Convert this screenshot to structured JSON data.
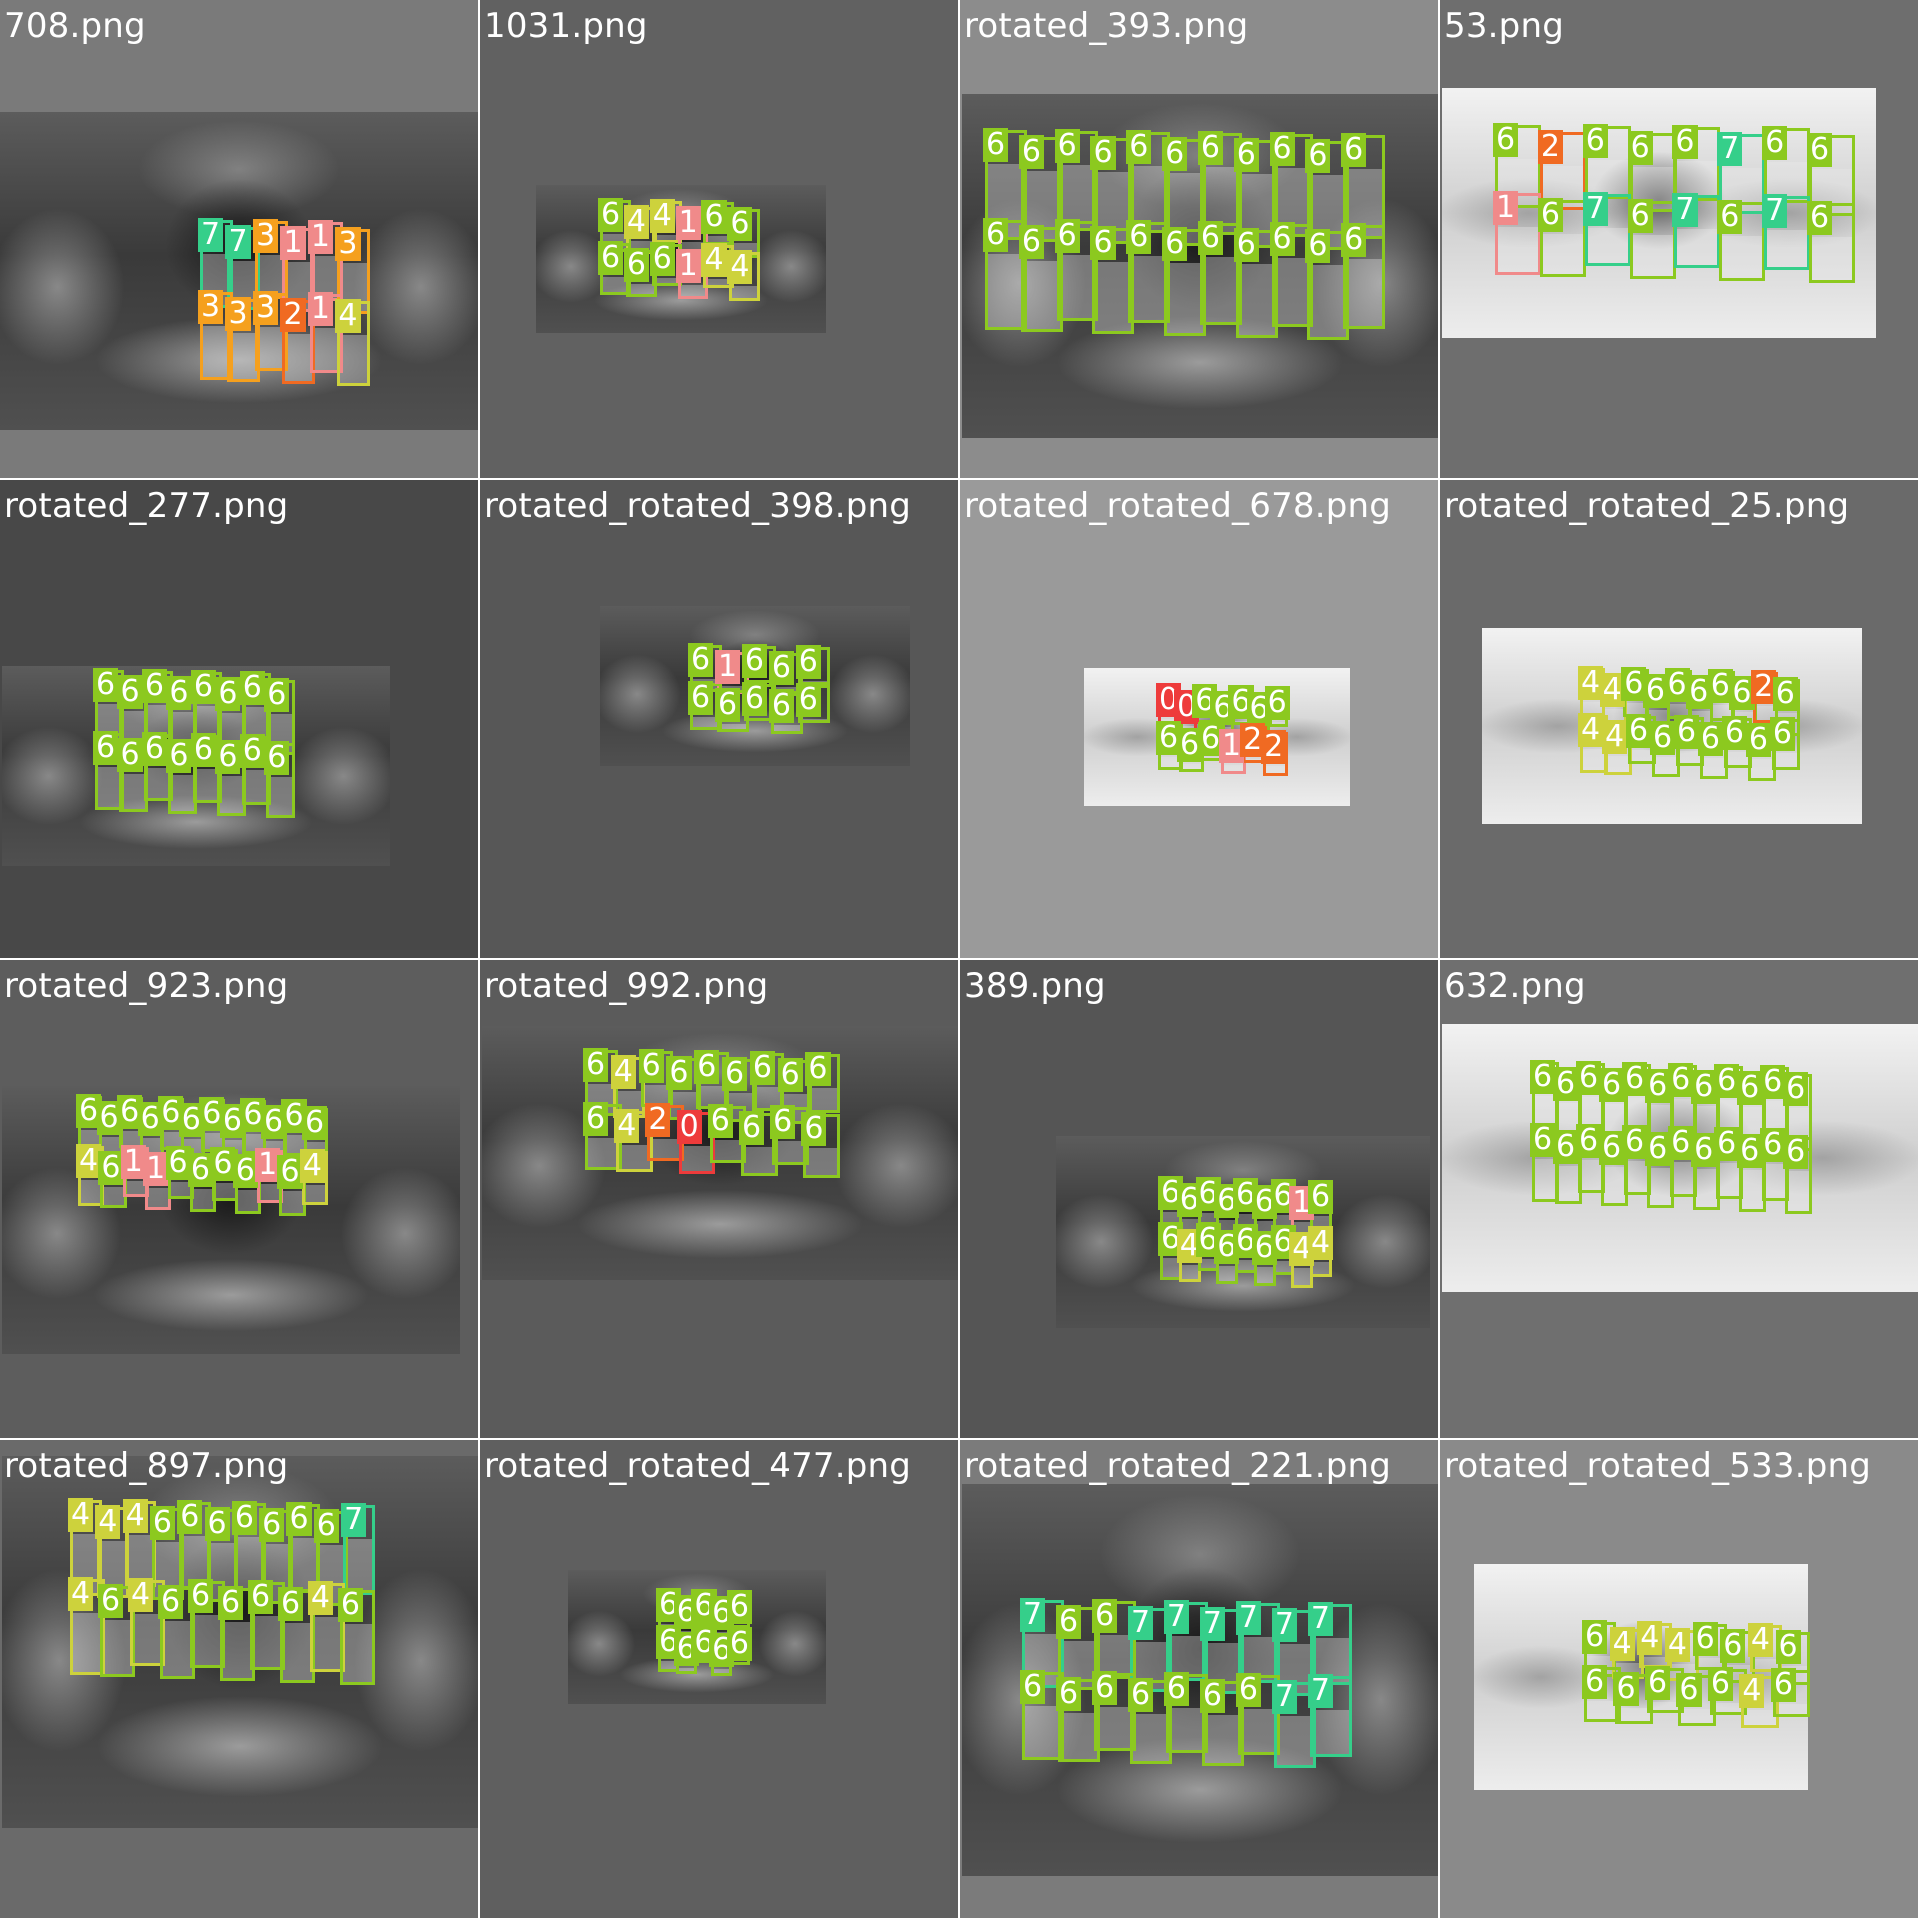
{
  "grid": {
    "columns": 4,
    "rows": 4
  },
  "class_colors": {
    "0": "#ee3b3b",
    "1": "#f08a8a",
    "2": "#f06a22",
    "3": "#f5a01e",
    "4": "#cdd23c",
    "6": "#8cc91f",
    "7": "#35cf8a"
  },
  "tiles": [
    {
      "title": "708.png",
      "bg": "#7a7a7a",
      "theme": "dark",
      "labels": [
        "7",
        "7",
        "3",
        "1",
        "1",
        "3",
        "3",
        "3",
        "3",
        "2",
        "1",
        "4"
      ]
    },
    {
      "title": "1031.png",
      "bg": "#616161",
      "theme": "dark",
      "labels": [
        "6",
        "4",
        "4",
        "1",
        "6",
        "6",
        "6",
        "6",
        "6",
        "1",
        "4",
        "4"
      ]
    },
    {
      "title": "rotated_393.png",
      "bg": "#8c8c8c",
      "theme": "dark",
      "labels": [
        "6",
        "6",
        "6",
        "6",
        "6",
        "6",
        "6",
        "6",
        "6",
        "6",
        "6",
        "6",
        "6",
        "6",
        "6",
        "6",
        "6",
        "6",
        "6",
        "6",
        "6",
        "6"
      ]
    },
    {
      "title": "53.png",
      "bg": "#6e6e6e",
      "theme": "light",
      "labels": [
        "6",
        "2",
        "6",
        "6",
        "6",
        "7",
        "6",
        "6",
        "1",
        "6",
        "7",
        "6",
        "7",
        "6",
        "7",
        "6"
      ]
    },
    {
      "title": "rotated_277.png",
      "bg": "#484848",
      "theme": "dark",
      "labels": [
        "6",
        "6",
        "6",
        "6",
        "6",
        "6",
        "6",
        "6",
        "6",
        "6",
        "6",
        "6",
        "6",
        "6",
        "6",
        "6"
      ]
    },
    {
      "title": "rotated_rotated_398.png",
      "bg": "#575757",
      "theme": "dark",
      "labels": [
        "6",
        "1",
        "6",
        "6",
        "6",
        "6",
        "6",
        "6",
        "6",
        "6"
      ]
    },
    {
      "title": "rotated_rotated_678.png",
      "bg": "#9a9a9a",
      "theme": "light",
      "labels": [
        "0",
        "0",
        "6",
        "6",
        "6",
        "6",
        "6",
        "6",
        "6",
        "6",
        "1",
        "2",
        "2"
      ]
    },
    {
      "title": "rotated_rotated_25.png",
      "bg": "#6a6a6a",
      "theme": "light",
      "labels": [
        "4",
        "4",
        "6",
        "6",
        "6",
        "6",
        "6",
        "6",
        "2",
        "6",
        "4",
        "4",
        "6",
        "6",
        "6",
        "6",
        "6",
        "6",
        "6"
      ]
    },
    {
      "title": "rotated_923.png",
      "bg": "#5d5d5d",
      "theme": "dark",
      "labels": [
        "6",
        "6",
        "6",
        "6",
        "6",
        "6",
        "6",
        "6",
        "6",
        "6",
        "6",
        "6",
        "4",
        "6",
        "1",
        "1",
        "6",
        "6",
        "6",
        "6",
        "1",
        "6",
        "4"
      ]
    },
    {
      "title": "rotated_992.png",
      "bg": "#5b5b5b",
      "theme": "dark",
      "labels": [
        "6",
        "4",
        "6",
        "6",
        "6",
        "6",
        "6",
        "6",
        "6",
        "6",
        "4",
        "2",
        "0",
        "6",
        "6",
        "6",
        "6"
      ]
    },
    {
      "title": "389.png",
      "bg": "#555555",
      "theme": "dark",
      "labels": [
        "6",
        "6",
        "6",
        "6",
        "6",
        "6",
        "6",
        "1",
        "6",
        "6",
        "4",
        "6",
        "6",
        "6",
        "6",
        "6",
        "4",
        "4"
      ]
    },
    {
      "title": "632.png",
      "bg": "#6f6f6f",
      "theme": "light",
      "labels": [
        "6",
        "6",
        "6",
        "6",
        "6",
        "6",
        "6",
        "6",
        "6",
        "6",
        "6",
        "6",
        "6",
        "6",
        "6",
        "6",
        "6",
        "6",
        "6",
        "6",
        "6",
        "6",
        "6",
        "6"
      ]
    },
    {
      "title": "rotated_897.png",
      "bg": "#6a6a6a",
      "theme": "dark",
      "labels": [
        "4",
        "4",
        "4",
        "6",
        "6",
        "6",
        "6",
        "6",
        "6",
        "6",
        "7",
        "4",
        "6",
        "4",
        "6",
        "6",
        "6",
        "6",
        "6",
        "4",
        "6"
      ]
    },
    {
      "title": "rotated_rotated_477.png",
      "bg": "#5f5f5f",
      "theme": "dark",
      "labels": [
        "6",
        "6",
        "6",
        "6",
        "6",
        "6",
        "6",
        "6",
        "6",
        "6"
      ]
    },
    {
      "title": "rotated_rotated_221.png",
      "bg": "#7b7b7b",
      "theme": "dark",
      "labels": [
        "7",
        "6",
        "6",
        "7",
        "7",
        "7",
        "7",
        "7",
        "7",
        "6",
        "6",
        "6",
        "6",
        "6",
        "6",
        "6",
        "7",
        "7"
      ]
    },
    {
      "title": "rotated_rotated_533.png",
      "bg": "#8a8a8a",
      "theme": "light",
      "labels": [
        "6",
        "4",
        "4",
        "4",
        "6",
        "6",
        "4",
        "6",
        "6",
        "6",
        "6",
        "6",
        "6",
        "4",
        "6"
      ]
    }
  ]
}
